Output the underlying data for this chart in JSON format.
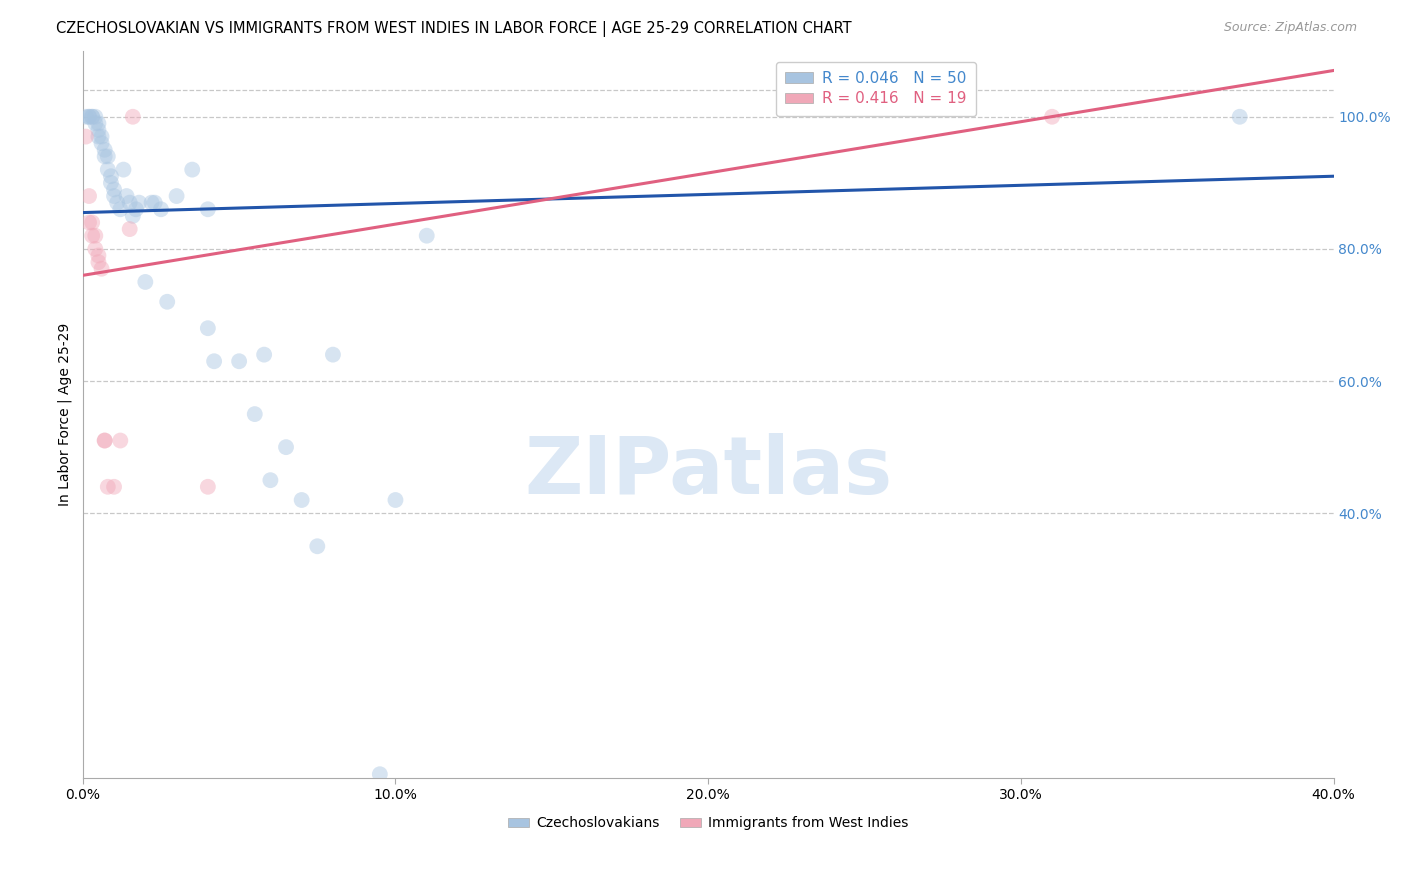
{
  "title": "CZECHOSLOVAKIAN VS IMMIGRANTS FROM WEST INDIES IN LABOR FORCE | AGE 25-29 CORRELATION CHART",
  "source": "Source: ZipAtlas.com",
  "ylabel": "In Labor Force | Age 25-29",
  "watermark": "ZIPatlas",
  "xlim": [
    0.0,
    0.4
  ],
  "ylim": [
    0.0,
    1.1
  ],
  "xticks": [
    0.0,
    0.1,
    0.2,
    0.3,
    0.4
  ],
  "xtick_labels": [
    "0.0%",
    "10.0%",
    "20.0%",
    "30.0%",
    "40.0%"
  ],
  "yticks": [
    0.4,
    0.6,
    0.8,
    1.0
  ],
  "ytick_labels": [
    "40.0%",
    "60.0%",
    "80.0%",
    "100.0%"
  ],
  "legend_entries": [
    {
      "label": "R = 0.046   N = 50",
      "color": "#a8c4e0"
    },
    {
      "label": "R = 0.416   N = 19",
      "color": "#f0a8b8"
    }
  ],
  "legend_bottom": [
    {
      "label": "Czechoslovakians",
      "color": "#a8c4e0"
    },
    {
      "label": "Immigrants from West Indies",
      "color": "#f0a8b8"
    }
  ],
  "blue_scatter": [
    [
      0.001,
      1.0
    ],
    [
      0.002,
      1.0
    ],
    [
      0.002,
      1.0
    ],
    [
      0.003,
      1.0
    ],
    [
      0.003,
      1.0
    ],
    [
      0.004,
      1.0
    ],
    [
      0.004,
      0.99
    ],
    [
      0.005,
      0.99
    ],
    [
      0.005,
      0.98
    ],
    [
      0.005,
      0.97
    ],
    [
      0.006,
      0.97
    ],
    [
      0.006,
      0.96
    ],
    [
      0.007,
      0.95
    ],
    [
      0.007,
      0.94
    ],
    [
      0.008,
      0.94
    ],
    [
      0.008,
      0.92
    ],
    [
      0.009,
      0.91
    ],
    [
      0.009,
      0.9
    ],
    [
      0.01,
      0.89
    ],
    [
      0.01,
      0.88
    ],
    [
      0.011,
      0.87
    ],
    [
      0.012,
      0.86
    ],
    [
      0.013,
      0.92
    ],
    [
      0.014,
      0.88
    ],
    [
      0.015,
      0.87
    ],
    [
      0.016,
      0.85
    ],
    [
      0.017,
      0.86
    ],
    [
      0.018,
      0.87
    ],
    [
      0.02,
      0.75
    ],
    [
      0.022,
      0.87
    ],
    [
      0.023,
      0.87
    ],
    [
      0.025,
      0.86
    ],
    [
      0.027,
      0.72
    ],
    [
      0.03,
      0.88
    ],
    [
      0.035,
      0.92
    ],
    [
      0.04,
      0.86
    ],
    [
      0.04,
      0.68
    ],
    [
      0.042,
      0.63
    ],
    [
      0.05,
      0.63
    ],
    [
      0.055,
      0.55
    ],
    [
      0.058,
      0.64
    ],
    [
      0.06,
      0.45
    ],
    [
      0.065,
      0.5
    ],
    [
      0.07,
      0.42
    ],
    [
      0.075,
      0.35
    ],
    [
      0.08,
      0.64
    ],
    [
      0.095,
      0.005
    ],
    [
      0.1,
      0.42
    ],
    [
      0.11,
      0.82
    ],
    [
      0.37,
      1.0
    ]
  ],
  "pink_scatter": [
    [
      0.001,
      0.97
    ],
    [
      0.002,
      0.88
    ],
    [
      0.002,
      0.84
    ],
    [
      0.003,
      0.84
    ],
    [
      0.003,
      0.82
    ],
    [
      0.004,
      0.82
    ],
    [
      0.004,
      0.8
    ],
    [
      0.005,
      0.79
    ],
    [
      0.005,
      0.78
    ],
    [
      0.006,
      0.77
    ],
    [
      0.007,
      0.51
    ],
    [
      0.007,
      0.51
    ],
    [
      0.008,
      0.44
    ],
    [
      0.01,
      0.44
    ],
    [
      0.012,
      0.51
    ],
    [
      0.015,
      0.83
    ],
    [
      0.016,
      1.0
    ],
    [
      0.04,
      0.44
    ],
    [
      0.31,
      1.0
    ]
  ],
  "blue_line_color": "#2255aa",
  "pink_line_color": "#e06080",
  "blue_line_x": [
    0.0,
    0.4
  ],
  "blue_line_y": [
    0.855,
    0.91
  ],
  "pink_line_x": [
    0.0,
    0.4
  ],
  "pink_line_y": [
    0.76,
    1.07
  ],
  "scatter_size": 130,
  "scatter_alpha": 0.45,
  "background_color": "#ffffff",
  "grid_color": "#c8c8c8",
  "grid_style": "--",
  "title_fontsize": 10.5,
  "axis_label_fontsize": 10,
  "tick_fontsize": 10,
  "legend_fontsize": 11,
  "source_fontsize": 9,
  "watermark_color": "#dce8f5",
  "watermark_fontsize": 58,
  "right_ytick_color": "#4488cc"
}
